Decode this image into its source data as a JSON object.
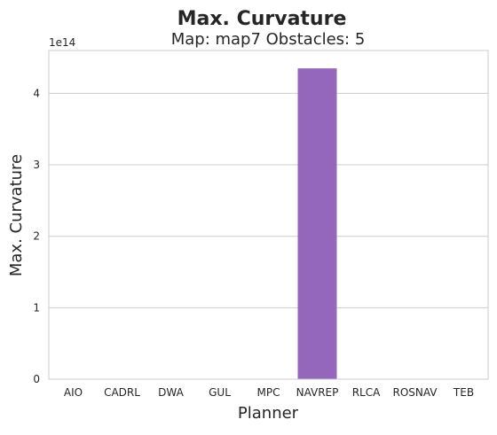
{
  "chart_data": {
    "type": "bar",
    "title": "Max. Curvature",
    "subtitle": "Map: map7 Obstacles: 5",
    "xlabel": "Planner",
    "ylabel": "Max. Curvature",
    "y_offset_label": "1e14",
    "categories": [
      "AIO",
      "CADRL",
      "DWA",
      "GUL",
      "MPC",
      "NAVREP",
      "RLCA",
      "ROSNAV",
      "TEB"
    ],
    "values": [
      0,
      0,
      0,
      0,
      0,
      435000000000000,
      0,
      0,
      0
    ],
    "y_scale": 100000000000000,
    "ylim": [
      0,
      460000000000000
    ],
    "yticks": [
      0,
      100000000000000,
      200000000000000,
      300000000000000,
      400000000000000
    ],
    "ytick_labels": [
      "0",
      "1",
      "2",
      "3",
      "4"
    ],
    "grid": "horizontal",
    "legend": "none",
    "bar_color": "#9467bd"
  }
}
